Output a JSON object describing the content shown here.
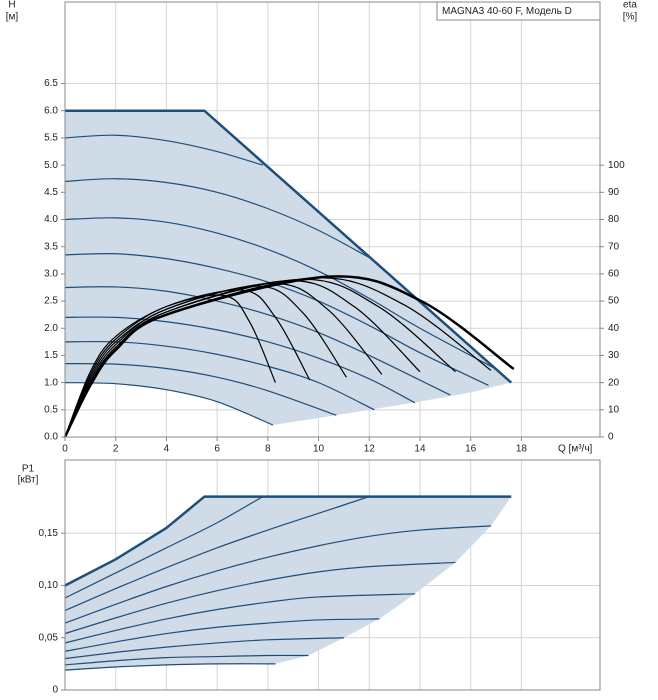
{
  "chart_data": [
    {
      "type": "line",
      "ylabel": "H",
      "yunit": "[м]",
      "y2label": "eta",
      "y2unit": "[%]",
      "xlabel": "Q [м³/ч]",
      "annotation": "MAGNA3 40-60 F, Модель D",
      "xlim": [
        0,
        21.1
      ],
      "xticks": [
        0,
        2,
        4,
        6,
        8,
        10,
        12,
        14,
        16,
        18
      ],
      "ylim": [
        0,
        8
      ],
      "yticks": [
        {
          "value": 0,
          "label": "0.0"
        },
        0.5,
        {
          "value": 1,
          "label": "1.0"
        },
        1.5,
        {
          "value": 2,
          "label": "2.0"
        },
        2.5,
        {
          "value": 3,
          "label": "3.0"
        },
        3.5,
        {
          "value": 4,
          "label": "4.0"
        },
        4.5,
        {
          "value": 5,
          "label": "5.0"
        },
        5.5,
        {
          "value": 6,
          "label": "6.0"
        },
        6.5
      ],
      "y2lim": [
        0,
        160
      ],
      "y2ticks": [
        0,
        10,
        20,
        30,
        40,
        50,
        60,
        70,
        80,
        90,
        100
      ],
      "grid": true,
      "area": {
        "color": "#cfdbe7",
        "x": [
          0,
          5.5,
          17.6,
          16,
          14,
          12,
          10,
          8.2,
          6,
          4,
          2,
          0
        ],
        "values": [
          6,
          6,
          1.0,
          0.82,
          0.65,
          0.5,
          0.35,
          0.22,
          0.65,
          0.87,
          0.98,
          1.0
        ]
      },
      "series": [
        {
          "color": "#1f4e79",
          "line_width": 2.5,
          "smooth": false,
          "x": [
            0,
            5.5,
            17.6
          ],
          "values": [
            6,
            6,
            1.0
          ]
        },
        {
          "color": "#1f4e79",
          "line_width": 1.2,
          "smooth": true,
          "x": [
            0,
            2,
            4,
            6,
            7.8
          ],
          "values": [
            5.5,
            5.55,
            5.45,
            5.25,
            5.0
          ]
        },
        {
          "color": "#1f4e79",
          "line_width": 1.2,
          "smooth": true,
          "x": [
            0,
            2,
            4,
            6,
            8,
            10,
            12
          ],
          "values": [
            4.7,
            4.75,
            4.68,
            4.5,
            4.2,
            3.8,
            3.3
          ]
        },
        {
          "color": "#1f4e79",
          "line_width": 1.2,
          "smooth": true,
          "x": [
            0,
            2,
            4,
            6,
            8,
            10,
            12,
            14,
            17
          ],
          "values": [
            4.0,
            4.03,
            3.95,
            3.75,
            3.45,
            3.05,
            2.55,
            2.0,
            1.25
          ]
        },
        {
          "color": "#1f4e79",
          "line_width": 1.2,
          "smooth": true,
          "x": [
            0,
            2,
            4,
            6,
            8,
            10,
            12,
            14,
            16.7
          ],
          "values": [
            3.35,
            3.37,
            3.28,
            3.1,
            2.85,
            2.5,
            2.05,
            1.55,
            0.95
          ]
        },
        {
          "color": "#1f4e79",
          "line_width": 1.2,
          "smooth": true,
          "x": [
            0,
            2,
            4,
            6,
            8,
            10,
            12,
            15.2
          ],
          "values": [
            2.75,
            2.76,
            2.68,
            2.5,
            2.25,
            1.92,
            1.5,
            0.77
          ]
        },
        {
          "color": "#1f4e79",
          "line_width": 1.2,
          "smooth": true,
          "x": [
            0,
            2,
            4,
            6,
            8,
            10,
            12,
            13.8
          ],
          "values": [
            2.2,
            2.2,
            2.12,
            1.97,
            1.75,
            1.45,
            1.07,
            0.63
          ]
        },
        {
          "color": "#1f4e79",
          "line_width": 1.2,
          "smooth": true,
          "x": [
            0,
            2,
            4,
            6,
            8,
            10,
            12.2
          ],
          "values": [
            1.75,
            1.75,
            1.67,
            1.52,
            1.3,
            1.0,
            0.5
          ]
        },
        {
          "color": "#1f4e79",
          "line_width": 1.2,
          "smooth": true,
          "x": [
            0,
            2,
            4,
            6,
            8,
            10.7
          ],
          "values": [
            1.35,
            1.34,
            1.26,
            1.1,
            0.85,
            0.4
          ]
        },
        {
          "color": "#1f4e79",
          "line_width": 1.2,
          "smooth": true,
          "x": [
            0,
            2,
            4,
            6,
            8.2
          ],
          "values": [
            1.0,
            0.98,
            0.87,
            0.65,
            0.22
          ]
        },
        {
          "color": "#000000",
          "line_width": 1.2,
          "smooth": true,
          "axis": "y2",
          "x": [
            0,
            1,
            2,
            4,
            6.3,
            7.3,
            8.3
          ],
          "values": [
            0,
            24,
            37,
            48,
            52,
            42,
            20
          ]
        },
        {
          "color": "#000000",
          "line_width": 1.2,
          "smooth": true,
          "axis": "y2",
          "x": [
            0,
            1,
            2,
            4,
            7.0,
            8.3,
            9.65
          ],
          "values": [
            0,
            23,
            36,
            48,
            54,
            44,
            21
          ]
        },
        {
          "color": "#000000",
          "line_width": 1.2,
          "smooth": true,
          "axis": "y2",
          "x": [
            0,
            1,
            2,
            4,
            7.6,
            9.35,
            11.1
          ],
          "values": [
            0,
            22,
            35,
            47,
            55.5,
            46,
            22
          ]
        },
        {
          "color": "#000000",
          "line_width": 1.2,
          "smooth": true,
          "axis": "y2",
          "x": [
            0,
            1,
            2,
            4,
            8.2,
            10.35,
            12.5
          ],
          "values": [
            0,
            21,
            34,
            47,
            56.5,
            47,
            23
          ]
        },
        {
          "color": "#000000",
          "line_width": 1.2,
          "smooth": true,
          "axis": "y2",
          "x": [
            0,
            1,
            2,
            4,
            8.8,
            11.4,
            14.0
          ],
          "values": [
            0,
            20,
            33,
            46,
            57.5,
            48,
            24
          ]
        },
        {
          "color": "#000000",
          "line_width": 1.2,
          "smooth": true,
          "axis": "y2",
          "x": [
            0,
            1,
            2,
            4,
            9.3,
            12.35,
            15.4
          ],
          "values": [
            0,
            20,
            33,
            46,
            58,
            48,
            24
          ]
        },
        {
          "color": "#000000",
          "line_width": 1.2,
          "smooth": true,
          "axis": "y2",
          "x": [
            0,
            1,
            2,
            4,
            9.8,
            13.3,
            16.8
          ],
          "values": [
            0,
            19,
            32,
            45,
            58.5,
            49,
            24.5
          ]
        },
        {
          "color": "#000000",
          "line_width": 2.5,
          "smooth": true,
          "axis": "y2",
          "x": [
            0,
            1,
            2,
            4,
            10.4,
            14.05,
            17.7
          ],
          "values": [
            0,
            19,
            32,
            45,
            59,
            50,
            25
          ]
        }
      ]
    },
    {
      "type": "line",
      "ylabel": "P1",
      "yunit": "[кВт]",
      "xlim": [
        0,
        21.1
      ],
      "ylim": [
        0,
        0.22
      ],
      "yticks": [
        0,
        {
          "value": 0.05,
          "label": "0,05"
        },
        {
          "value": 0.1,
          "label": "0,10"
        },
        {
          "value": 0.15,
          "label": "0,15"
        }
      ],
      "grid": true,
      "area": {
        "color": "#cfdbe7",
        "x": [
          0,
          2,
          4,
          5.5,
          17.6,
          16.8,
          15.4,
          13.8,
          12.4,
          11,
          9.6,
          8.3,
          6,
          4,
          2,
          0
        ],
        "values": [
          0.1,
          0.125,
          0.155,
          0.185,
          0.185,
          0.157,
          0.122,
          0.092,
          0.068,
          0.05,
          0.033,
          0.025,
          0.025,
          0.024,
          0.022,
          0.019
        ]
      },
      "series": [
        {
          "color": "#1f4e79",
          "line_width": 2.5,
          "smooth": false,
          "x": [
            0,
            2,
            4,
            5.5,
            17.6
          ],
          "values": [
            0.1,
            0.125,
            0.155,
            0.185,
            0.185
          ]
        },
        {
          "color": "#1f4e79",
          "line_width": 1.2,
          "smooth": true,
          "x": [
            0,
            2,
            4,
            6,
            7.8
          ],
          "values": [
            0.088,
            0.112,
            0.136,
            0.16,
            0.185
          ]
        },
        {
          "color": "#1f4e79",
          "line_width": 1.2,
          "smooth": true,
          "x": [
            0,
            2,
            4,
            6,
            8,
            10,
            12
          ],
          "values": [
            0.076,
            0.097,
            0.117,
            0.136,
            0.153,
            0.169,
            0.185
          ]
        },
        {
          "color": "#1f4e79",
          "line_width": 1.2,
          "smooth": true,
          "x": [
            0,
            2,
            4,
            6,
            8,
            10,
            12,
            14,
            16.8
          ],
          "values": [
            0.064,
            0.082,
            0.099,
            0.114,
            0.127,
            0.138,
            0.147,
            0.153,
            0.157
          ]
        },
        {
          "color": "#1f4e79",
          "line_width": 1.2,
          "smooth": true,
          "x": [
            0,
            2,
            4,
            6,
            8,
            10,
            12,
            15.4
          ],
          "values": [
            0.054,
            0.069,
            0.083,
            0.095,
            0.105,
            0.113,
            0.118,
            0.122
          ]
        },
        {
          "color": "#1f4e79",
          "line_width": 1.2,
          "smooth": true,
          "x": [
            0,
            2,
            4,
            6,
            8,
            10,
            13.8
          ],
          "values": [
            0.045,
            0.057,
            0.068,
            0.077,
            0.084,
            0.089,
            0.092
          ]
        },
        {
          "color": "#1f4e79",
          "line_width": 1.2,
          "smooth": true,
          "x": [
            0,
            2,
            4,
            6,
            8,
            10,
            12.4
          ],
          "values": [
            0.037,
            0.046,
            0.054,
            0.06,
            0.064,
            0.067,
            0.068
          ]
        },
        {
          "color": "#1f4e79",
          "line_width": 1.2,
          "smooth": true,
          "x": [
            0,
            2,
            4,
            6,
            8,
            11
          ],
          "values": [
            0.03,
            0.036,
            0.041,
            0.045,
            0.048,
            0.05
          ]
        },
        {
          "color": "#1f4e79",
          "line_width": 1.2,
          "smooth": true,
          "x": [
            0,
            2,
            4,
            6,
            8,
            9.6
          ],
          "values": [
            0.024,
            0.028,
            0.031,
            0.032,
            0.033,
            0.033
          ]
        },
        {
          "color": "#1f4e79",
          "line_width": 1.2,
          "smooth": true,
          "x": [
            0,
            2,
            4,
            6,
            8.3
          ],
          "values": [
            0.019,
            0.022,
            0.024,
            0.025,
            0.025
          ]
        }
      ]
    }
  ]
}
